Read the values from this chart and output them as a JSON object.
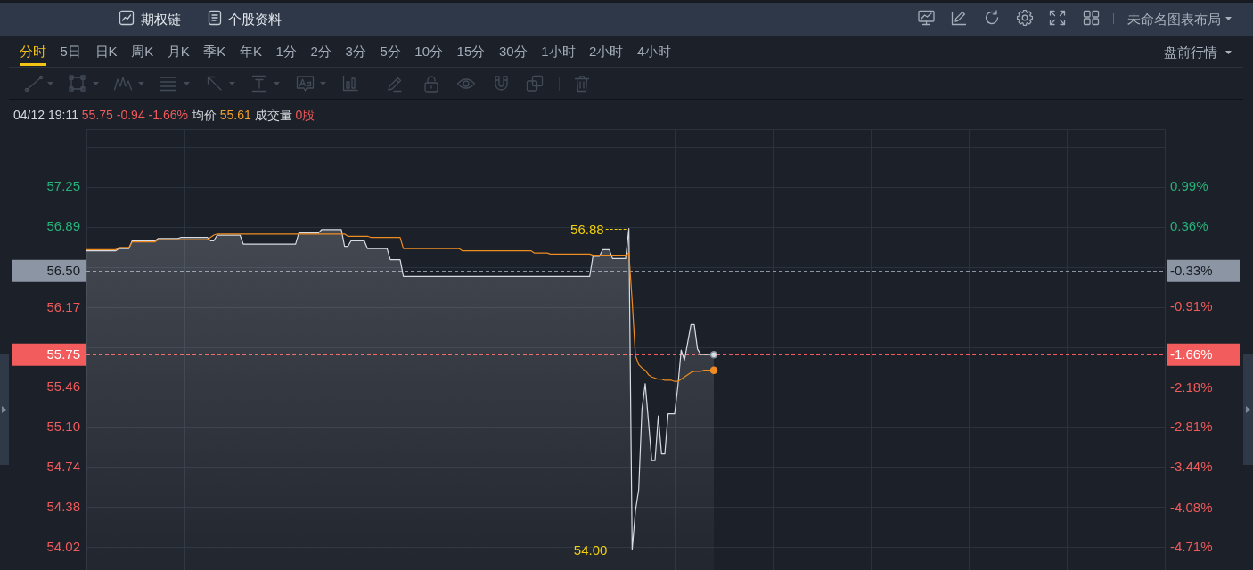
{
  "chart_data": {
    "type": "area",
    "subtitle": "04/12 19:11 55.75 -0.94 -1.66% 均价 55.61 成交量 0股",
    "annotations": [
      "56.88",
      "54.00",
      "-0.33%",
      "-1.66%",
      "期权链",
      "个股资料",
      "未命名图表布局",
      "分时",
      "5日",
      "日K",
      "周K",
      "月K",
      "季K",
      "年K",
      "1分",
      "2分",
      "3分",
      "5分",
      "10分",
      "15分",
      "30分",
      "1小时",
      "2小时",
      "4小时",
      "盘前行情"
    ],
    "categories": [
      null,
      null,
      null,
      null,
      null,
      null,
      null,
      null,
      null,
      null,
      null,
      null,
      null,
      null,
      null,
      null,
      null,
      null,
      null,
      null,
      null,
      null,
      null,
      null,
      null,
      null,
      null,
      null,
      null,
      null,
      null,
      null,
      null,
      null,
      null,
      null,
      null,
      null,
      null,
      null,
      null,
      null,
      null,
      null,
      null,
      null,
      null,
      null,
      null,
      null,
      null,
      null,
      null,
      null,
      null,
      null,
      null,
      null,
      null,
      null,
      null,
      null,
      null,
      null,
      null,
      null,
      null,
      null,
      null,
      null,
      null,
      null,
      null,
      null,
      null,
      null,
      null,
      null,
      null,
      null,
      null,
      null,
      null,
      null,
      null,
      null,
      null,
      null,
      null,
      null,
      null,
      null,
      null,
      null,
      null,
      null,
      null,
      null,
      null,
      null,
      null,
      null,
      null,
      null,
      null,
      null,
      null,
      null,
      null,
      null,
      null,
      null,
      null,
      null,
      null,
      null,
      null,
      null,
      null,
      null,
      null,
      null,
      null,
      null,
      null,
      null,
      null,
      null,
      null,
      null,
      null,
      null,
      null,
      null,
      null,
      null,
      null,
      null,
      null,
      null,
      null,
      null,
      null,
      null,
      null,
      null,
      null,
      null,
      null,
      null,
      null,
      null,
      null,
      null,
      null,
      null,
      null,
      null,
      null,
      null,
      null,
      null,
      null,
      null,
      null,
      null,
      null,
      null,
      null,
      null,
      null,
      null,
      null,
      null,
      null,
      null,
      null,
      null,
      null,
      null,
      null,
      null,
      null,
      null,
      null,
      null,
      null,
      null,
      null,
      null,
      null,
      null,
      null,
      null,
      null,
      null,
      null,
      null,
      null,
      null,
      null,
      null,
      null,
      null,
      null,
      null,
      null,
      null,
      null,
      null,
      null,
      null,
      null,
      null,
      null,
      null,
      null,
      null,
      null,
      null,
      null,
      null,
      null,
      null,
      null,
      null,
      null,
      null,
      null,
      null,
      null,
      null,
      null,
      null,
      null,
      null,
      null,
      null,
      null,
      null,
      null,
      null,
      null,
      null,
      null,
      null,
      null,
      null,
      null,
      null,
      null,
      null,
      null,
      null,
      null,
      null,
      null,
      null,
      null,
      null,
      null,
      null,
      null,
      null,
      null,
      null,
      null,
      null,
      null,
      null,
      null,
      null,
      null,
      null,
      null,
      null,
      null,
      null,
      null,
      null,
      null,
      null,
      null,
      null,
      null,
      null,
      null,
      null,
      null,
      null,
      null,
      null,
      null,
      null,
      null,
      null,
      null,
      null,
      null,
      null,
      null,
      null,
      null,
      null,
      null,
      null,
      null,
      null,
      null,
      null,
      null,
      null,
      null,
      null,
      null,
      null,
      null,
      null,
      null,
      null,
      null,
      null,
      null,
      null,
      null,
      null,
      null,
      null,
      null,
      null,
      null
    ],
    "series": [
      {
        "color": "#d8dce2",
        "values": [
          56.68,
          56.68,
          56.68,
          56.68,
          56.68,
          56.68,
          56.68,
          56.68,
          56.68,
          56.68,
          56.7,
          56.7,
          56.7,
          56.7,
          56.77,
          56.77,
          56.77,
          56.77,
          56.77,
          56.77,
          56.77,
          56.77,
          56.79,
          56.79,
          56.79,
          56.79,
          56.79,
          56.79,
          56.79,
          56.8,
          56.8,
          56.8,
          56.8,
          56.8,
          56.8,
          56.8,
          56.8,
          56.8,
          56.77,
          56.77,
          56.82,
          56.82,
          56.82,
          56.82,
          56.82,
          56.82,
          56.82,
          56.82,
          56.74,
          56.74,
          56.74,
          56.74,
          56.74,
          56.74,
          56.74,
          56.74,
          56.74,
          56.74,
          56.74,
          56.74,
          56.74,
          56.74,
          56.74,
          56.74,
          56.74,
          56.84,
          56.84,
          56.84,
          56.84,
          56.84,
          56.84,
          56.84,
          56.87,
          56.87,
          56.87,
          56.87,
          56.87,
          56.87,
          56.87,
          56.72,
          56.72,
          56.77,
          56.77,
          56.77,
          56.77,
          56.77,
          56.7,
          56.7,
          56.7,
          56.7,
          56.7,
          56.7,
          56.7,
          56.6,
          56.6,
          56.6,
          56.6,
          56.45,
          56.45,
          56.45,
          56.45,
          56.45,
          56.45,
          56.45,
          56.45,
          56.45,
          56.45,
          56.45,
          56.45,
          56.45,
          56.45,
          56.45,
          56.45,
          56.45,
          56.45,
          56.45,
          56.45,
          56.45,
          56.45,
          56.45,
          56.45,
          56.45,
          56.45,
          56.45,
          56.45,
          56.45,
          56.45,
          56.45,
          56.45,
          56.45,
          56.45,
          56.45,
          56.45,
          56.45,
          56.45,
          56.45,
          56.45,
          56.45,
          56.45,
          56.45,
          56.45,
          56.45,
          56.45,
          56.45,
          56.45,
          56.45,
          56.45,
          56.45,
          56.45,
          56.45,
          56.45,
          56.45,
          56.45,
          56.45,
          56.45,
          56.63,
          56.63,
          56.63,
          56.69,
          56.69,
          56.69,
          56.61,
          56.61,
          56.61,
          56.61,
          56.61,
          56.88,
          54,
          54.35,
          54.54,
          55.26,
          55.49,
          55.15,
          54.8,
          54.8,
          55.2,
          54.86,
          54.86,
          55.22,
          55.22,
          55.22,
          55.47,
          55.79,
          55.7,
          55.86,
          56.02,
          56.02,
          55.8,
          55.75,
          55.75,
          55.75,
          55.75,
          55.75,
          null,
          null,
          null,
          null,
          null,
          null,
          null,
          null,
          null,
          null,
          null,
          null,
          null,
          null,
          null,
          null,
          null,
          null,
          null,
          null,
          null,
          null,
          null,
          null,
          null,
          null,
          null,
          null,
          null,
          null,
          null,
          null,
          null,
          null,
          null,
          null,
          null,
          null,
          null,
          null,
          null,
          null,
          null,
          null,
          null,
          null,
          null,
          null,
          null,
          null,
          null,
          null,
          null,
          null,
          null,
          null,
          null,
          null,
          null,
          null,
          null,
          null,
          null,
          null,
          null,
          null,
          null,
          null,
          null,
          null,
          null,
          null,
          null,
          null,
          null,
          null,
          null,
          null,
          null,
          null,
          null,
          null,
          null,
          null,
          null,
          null,
          null,
          null,
          null,
          null,
          null,
          null,
          null,
          null,
          null,
          null,
          null,
          null,
          null,
          null,
          null,
          null,
          null,
          null,
          null,
          null,
          null,
          null,
          null,
          null,
          null,
          null,
          null,
          null,
          null,
          null,
          null,
          null,
          null,
          null,
          null,
          null,
          null,
          null,
          null,
          null,
          null,
          null,
          null,
          null,
          null,
          null,
          null,
          null,
          null,
          null,
          null,
          null
        ]
      },
      {
        "type": "line",
        "color": "#ee8c22",
        "values": [
          56.69,
          56.69,
          56.69,
          56.69,
          56.69,
          56.69,
          56.69,
          56.69,
          56.69,
          56.69,
          56.71,
          56.71,
          56.71,
          56.71,
          56.76,
          56.76,
          56.76,
          56.76,
          56.76,
          56.76,
          56.76,
          56.76,
          56.78,
          56.78,
          56.78,
          56.78,
          56.78,
          56.78,
          56.78,
          56.78,
          56.78,
          56.78,
          56.78,
          56.78,
          56.78,
          56.78,
          56.78,
          56.78,
          56.8,
          56.82,
          56.83,
          56.83,
          56.83,
          56.83,
          56.83,
          56.83,
          56.83,
          56.83,
          56.83,
          56.83,
          56.83,
          56.83,
          56.83,
          56.83,
          56.83,
          56.83,
          56.83,
          56.83,
          56.83,
          56.83,
          56.83,
          56.83,
          56.83,
          56.83,
          56.83,
          56.83,
          56.83,
          56.83,
          56.83,
          56.83,
          56.83,
          56.83,
          56.83,
          56.83,
          56.83,
          56.83,
          56.83,
          56.83,
          56.83,
          56.83,
          56.81,
          56.81,
          56.81,
          56.81,
          56.81,
          56.81,
          56.81,
          56.8,
          56.8,
          56.8,
          56.8,
          56.8,
          56.8,
          56.8,
          56.8,
          56.8,
          56.8,
          56.7,
          56.7,
          56.7,
          56.7,
          56.7,
          56.7,
          56.7,
          56.7,
          56.7,
          56.7,
          56.7,
          56.7,
          56.7,
          56.7,
          56.7,
          56.7,
          56.7,
          56.7,
          56.68,
          56.68,
          56.68,
          56.68,
          56.68,
          56.68,
          56.68,
          56.68,
          56.68,
          56.68,
          56.68,
          56.68,
          56.68,
          56.68,
          56.68,
          56.68,
          56.68,
          56.68,
          56.68,
          56.68,
          56.68,
          56.68,
          56.66,
          56.66,
          56.66,
          56.66,
          56.66,
          56.65,
          56.65,
          56.65,
          56.65,
          56.65,
          56.65,
          56.65,
          56.65,
          56.65,
          56.65,
          56.65,
          56.65,
          56.65,
          56.64,
          56.64,
          56.64,
          56.64,
          56.64,
          56.64,
          56.64,
          56.64,
          56.64,
          56.64,
          56.64,
          56.66,
          56.23,
          55.74,
          55.66,
          55.63,
          55.61,
          55.57,
          55.55,
          55.54,
          55.53,
          55.53,
          55.52,
          55.52,
          55.52,
          55.51,
          55.51,
          55.53,
          55.55,
          55.57,
          55.59,
          55.6,
          55.6,
          55.6,
          55.61,
          55.61,
          55.61,
          55.61,
          null,
          null,
          null,
          null,
          null,
          null,
          null,
          null,
          null,
          null,
          null,
          null,
          null,
          null,
          null,
          null,
          null,
          null,
          null,
          null,
          null,
          null,
          null,
          null,
          null,
          null,
          null,
          null,
          null,
          null,
          null,
          null,
          null,
          null,
          null,
          null,
          null,
          null,
          null,
          null,
          null,
          null,
          null,
          null,
          null,
          null,
          null,
          null,
          null,
          null,
          null,
          null,
          null,
          null,
          null,
          null,
          null,
          null,
          null,
          null,
          null,
          null,
          null,
          null,
          null,
          null,
          null,
          null,
          null,
          null,
          null,
          null,
          null,
          null,
          null,
          null,
          null,
          null,
          null,
          null,
          null,
          null,
          null,
          null,
          null,
          null,
          null,
          null,
          null,
          null,
          null,
          null,
          null,
          null,
          null,
          null,
          null,
          null,
          null,
          null,
          null,
          null,
          null,
          null,
          null,
          null,
          null,
          null,
          null,
          null,
          null,
          null,
          null,
          null,
          null,
          null,
          null,
          null,
          null,
          null,
          null,
          null,
          null,
          null,
          null,
          null,
          null,
          null,
          null,
          null,
          null,
          null,
          null,
          null,
          null,
          null,
          null,
          null
        ]
      }
    ],
    "ylim": [
      53.82,
      57.77
    ],
    "yticks": [
      {
        "value": 57.61,
        "label": null
      },
      57.25,
      56.89,
      {
        "value": 56.53,
        "label": null
      },
      56.17,
      {
        "value": 55.81,
        "label": null
      },
      55.46,
      {
        "value": 55.1,
        "label": "55.10"
      },
      54.74,
      54.38,
      54.02
    ],
    "y2lim": [
      -5.06,
      1.91
    ],
    "y2ticks": [
      {
        "value": 0.99,
        "label": "0.99%"
      },
      {
        "value": 0.36,
        "label": "0.36%"
      },
      {
        "value": -0.91,
        "label": "-0.91%"
      },
      {
        "value": -2.18,
        "label": "-2.18%"
      },
      {
        "value": -2.81,
        "label": "-2.81%"
      },
      {
        "value": -3.44,
        "label": "-3.44%"
      },
      {
        "value": -4.08,
        "label": "-4.08%"
      },
      {
        "value": -4.71,
        "label": "-4.71%"
      }
    ],
    "ref_lines": [
      {
        "axis": "y",
        "value": 56.5,
        "label": "56.50",
        "color": "#8c95a4",
        "line_style": "dashed"
      },
      {
        "axis": "y",
        "value": 55.75,
        "label": "55.75",
        "color": "#f25c5c",
        "line_style": "dashed"
      }
    ],
    "grid": true
  }
}
